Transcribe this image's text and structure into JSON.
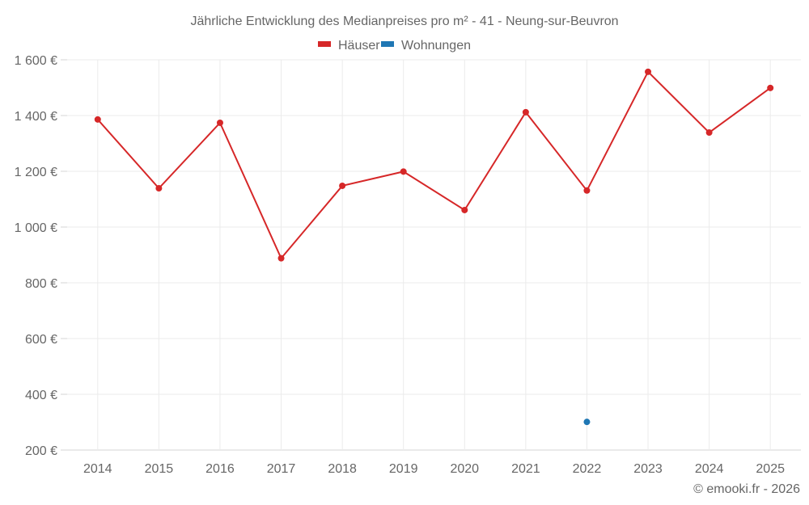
{
  "chart_data": {
    "type": "line",
    "title": "Jährliche Entwicklung des Medianpreises pro m² - 41 - Neung-sur-Beuvron",
    "xlabel": "",
    "ylabel": "",
    "categories": [
      "2014",
      "2015",
      "2016",
      "2017",
      "2018",
      "2019",
      "2020",
      "2021",
      "2022",
      "2023",
      "2024",
      "2025"
    ],
    "series": [
      {
        "name": "Häuser",
        "color": "#d62728",
        "values": [
          1386,
          1139,
          1374,
          888,
          1148,
          1199,
          1061,
          1412,
          1131,
          1557,
          1339,
          1499
        ]
      },
      {
        "name": "Wohnungen",
        "color": "#1f77b4",
        "values": [
          null,
          null,
          null,
          null,
          null,
          null,
          null,
          null,
          301,
          null,
          null,
          null
        ]
      }
    ],
    "yticks": [
      200,
      400,
      600,
      800,
      1000,
      1200,
      1400,
      1600
    ],
    "ytick_labels": [
      "200 €",
      "400 €",
      "600 €",
      "800 €",
      "1 000 €",
      "1 200 €",
      "1 400 €",
      "1 600 €"
    ],
    "ylim": [
      200,
      1600
    ],
    "grid": true,
    "legend_position": "top"
  },
  "credit": "© emooki.fr - 2026"
}
